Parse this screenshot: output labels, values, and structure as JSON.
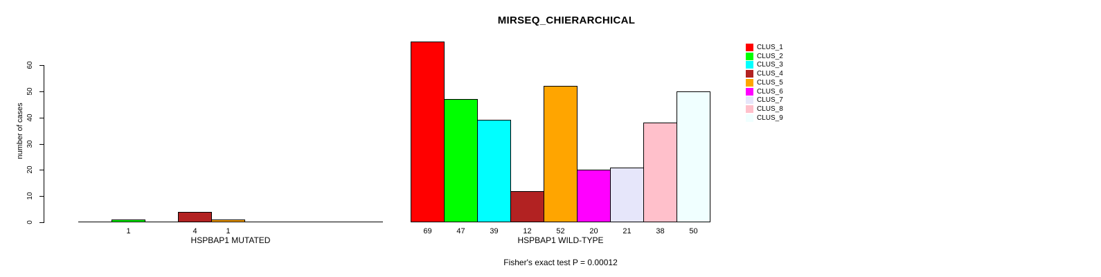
{
  "chart_data": {
    "type": "bar",
    "title": "MIRSEQ_CHIERARCHICAL",
    "ylabel": "number of cases",
    "ylim": [
      0,
      60
    ],
    "yticks": [
      0,
      10,
      20,
      30,
      40,
      50,
      60
    ],
    "grid": false,
    "legend_position": "right",
    "categories": [
      "CLUS_1",
      "CLUS_2",
      "CLUS_3",
      "CLUS_4",
      "CLUS_5",
      "CLUS_6",
      "CLUS_7",
      "CLUS_8",
      "CLUS_9"
    ],
    "colors": [
      "#FF0000",
      "#00FF00",
      "#00FFFF",
      "#B22222",
      "#FFA500",
      "#FF00FF",
      "#E6E6FA",
      "#FFC0CB",
      "#F0FFFF"
    ],
    "groups": [
      {
        "label": "HSPBAP1 MUTATED",
        "values": [
          0,
          1,
          0,
          4,
          1,
          0,
          0,
          0,
          0
        ]
      },
      {
        "label": "HSPBAP1 WILD-TYPE",
        "values": [
          69,
          47,
          39,
          12,
          52,
          20,
          21,
          38,
          50
        ]
      }
    ],
    "legend": {
      "entries": [
        {
          "label": "CLUS_1",
          "color": "#FF0000"
        },
        {
          "label": "CLUS_2",
          "color": "#00FF00"
        },
        {
          "label": "CLUS_3",
          "color": "#00FFFF"
        },
        {
          "label": "CLUS_4",
          "color": "#B22222"
        },
        {
          "label": "CLUS_5",
          "color": "#FFA500"
        },
        {
          "label": "CLUS_6",
          "color": "#FF00FF"
        },
        {
          "label": "CLUS_7",
          "color": "#E6E6FA"
        },
        {
          "label": "CLUS_8",
          "color": "#FFC0CB"
        },
        {
          "label": "CLUS_9",
          "color": "#F0FFFF"
        }
      ]
    },
    "annotation": "Fisher's exact test P = 0.00012",
    "axis_color": "#000000",
    "background": "#FFFFFF"
  }
}
